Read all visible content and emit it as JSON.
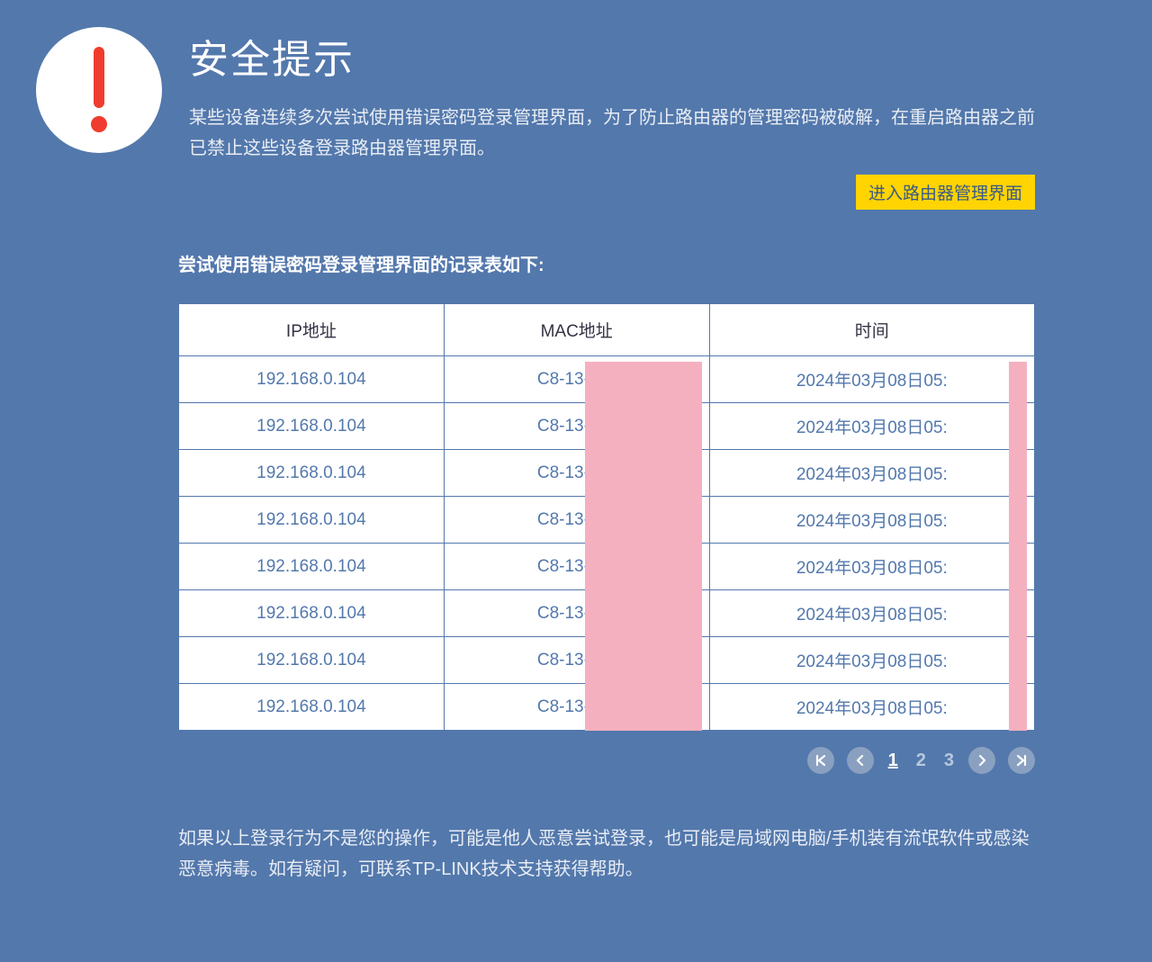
{
  "header": {
    "title": "安全提示",
    "description": "某些设备连续多次尝试使用错误密码登录管理界面，为了防止路由器的管理密码被破解，在重启路由器之前已禁止这些设备登录路由器管理界面。",
    "enter_button_label": "进入路由器管理界面"
  },
  "table": {
    "caption": "尝试使用错误密码登录管理界面的记录表如下:",
    "columns": {
      "ip": "IP地址",
      "mac": "MAC地址",
      "time": "时间"
    },
    "rows": [
      {
        "ip": "192.168.0.104",
        "mac": "C8-13-8B-",
        "time": "2024年03月08日05:"
      },
      {
        "ip": "192.168.0.104",
        "mac": "C8-13-8B-",
        "time": "2024年03月08日05:"
      },
      {
        "ip": "192.168.0.104",
        "mac": "C8-13-8B-",
        "time": "2024年03月08日05:"
      },
      {
        "ip": "192.168.0.104",
        "mac": "C8-13-8B-",
        "time": "2024年03月08日05:"
      },
      {
        "ip": "192.168.0.104",
        "mac": "C8-13-8B-",
        "time": "2024年03月08日05:"
      },
      {
        "ip": "192.168.0.104",
        "mac": "C8-13-8B-",
        "time": "2024年03月08日05:"
      },
      {
        "ip": "192.168.0.104",
        "mac": "C8-13-8B-",
        "time": "2024年03月08日05:"
      },
      {
        "ip": "192.168.0.104",
        "mac": "C8-13-8B-",
        "time": "2024年03月08日05:"
      }
    ]
  },
  "pagination": {
    "pages": [
      "1",
      "2",
      "3"
    ],
    "current": "1"
  },
  "footer": {
    "note": "如果以上登录行为不是您的操作，可能是他人恶意尝试登录，也可能是局域网电脑/手机装有流氓软件或感染恶意病毒。如有疑问，可联系TP-LINK技术支持获得帮助。"
  },
  "colors": {
    "background": "#5378ac",
    "accent_button_bg": "#ffd400",
    "accent_button_text": "#3a5a8a",
    "alert_icon": "#f03c2e",
    "redaction": "#f5b0c0",
    "table_bg": "#ffffff",
    "table_text": "#5378ac",
    "page_btn_bg": "#8aa0c0"
  }
}
